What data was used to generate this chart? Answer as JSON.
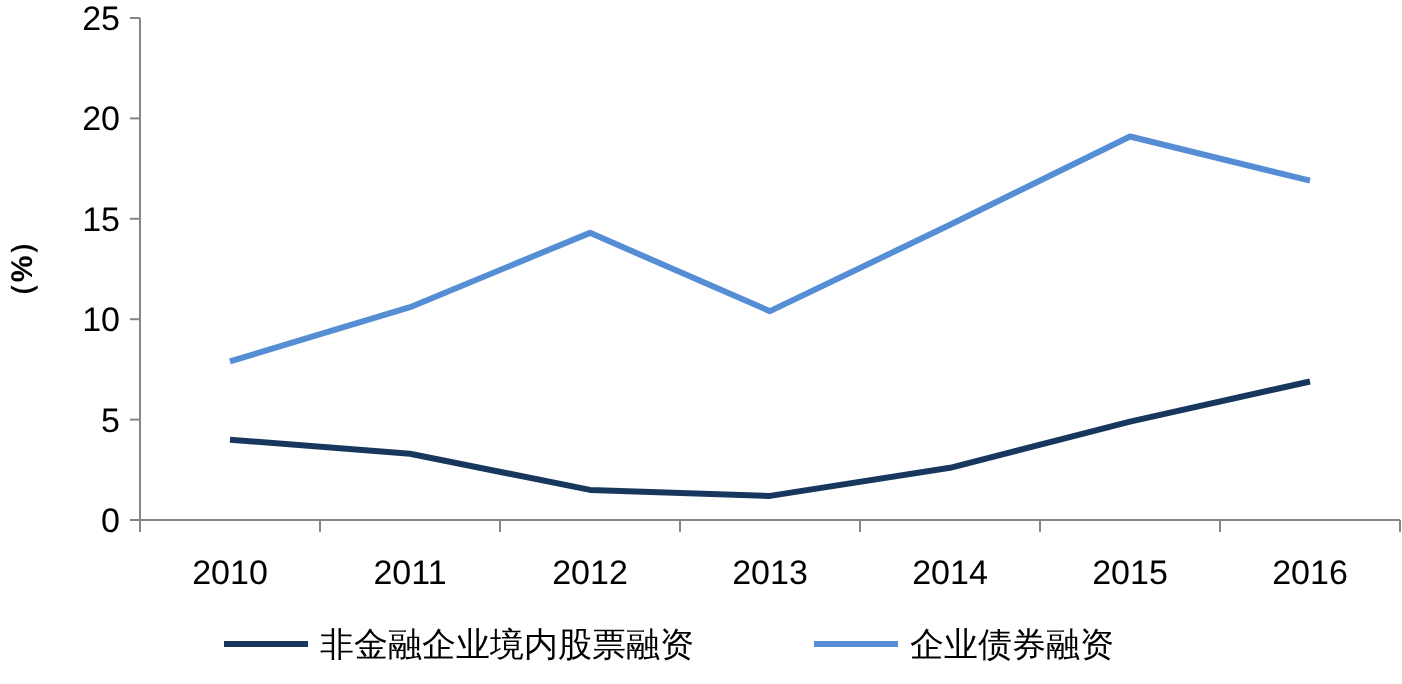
{
  "chart_data": {
    "type": "line",
    "ylabel": "（%）",
    "categories": [
      "2010",
      "2011",
      "2012",
      "2013",
      "2014",
      "2015",
      "2016"
    ],
    "series": [
      {
        "name": "非金融企业境内股票融资",
        "color": "#17375e",
        "values": [
          4.0,
          3.3,
          1.5,
          1.2,
          2.6,
          4.9,
          6.9
        ]
      },
      {
        "name": "企业债券融资",
        "color": "#558ed5",
        "values": [
          7.9,
          10.6,
          14.3,
          10.4,
          14.7,
          19.1,
          16.9
        ]
      }
    ],
    "ylim": [
      0,
      25
    ],
    "yticks": [
      0,
      5,
      10,
      15,
      20,
      25
    ],
    "grid": false,
    "legend": "bottom",
    "marker": "none",
    "line_style": "solid"
  }
}
